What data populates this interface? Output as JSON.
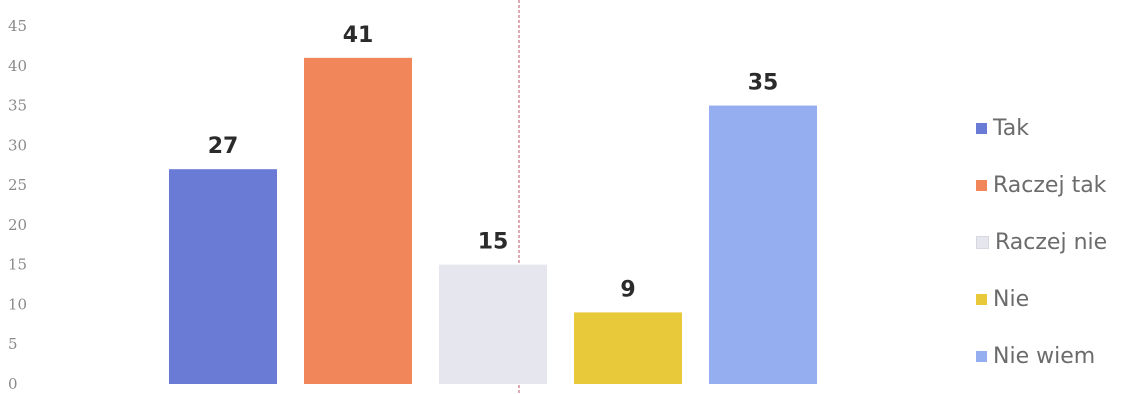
{
  "chart_data": {
    "type": "bar",
    "title": "",
    "xlabel": "",
    "ylabel": "",
    "categories": [
      "Tak",
      "Raczej tak",
      "Raczej nie",
      "Nie",
      "Nie wiem"
    ],
    "values": [
      27,
      41,
      15,
      9,
      35
    ],
    "data_labels": [
      "27",
      "41",
      "15",
      "9",
      "35"
    ],
    "colors": [
      "#6a7bd6",
      "#f0865a",
      "#e6e6ee",
      "#e8c93a",
      "#94aef0"
    ],
    "ylim": [
      0,
      45
    ],
    "yticks": [
      "0",
      "5",
      "10",
      "15",
      "20",
      "25",
      "30",
      "35",
      "40",
      "45"
    ],
    "grid": false,
    "legend": {
      "position": "right",
      "items": [
        {
          "label": "Tak",
          "color": "#6a7bd6"
        },
        {
          "label": "Raczej tak",
          "color": "#f0865a"
        },
        {
          "label": "Raczej nie",
          "color": "#e6e6ee"
        },
        {
          "label": "Nie",
          "color": "#e8c93a"
        },
        {
          "label": "Nie wiem",
          "color": "#94aef0"
        }
      ]
    }
  }
}
